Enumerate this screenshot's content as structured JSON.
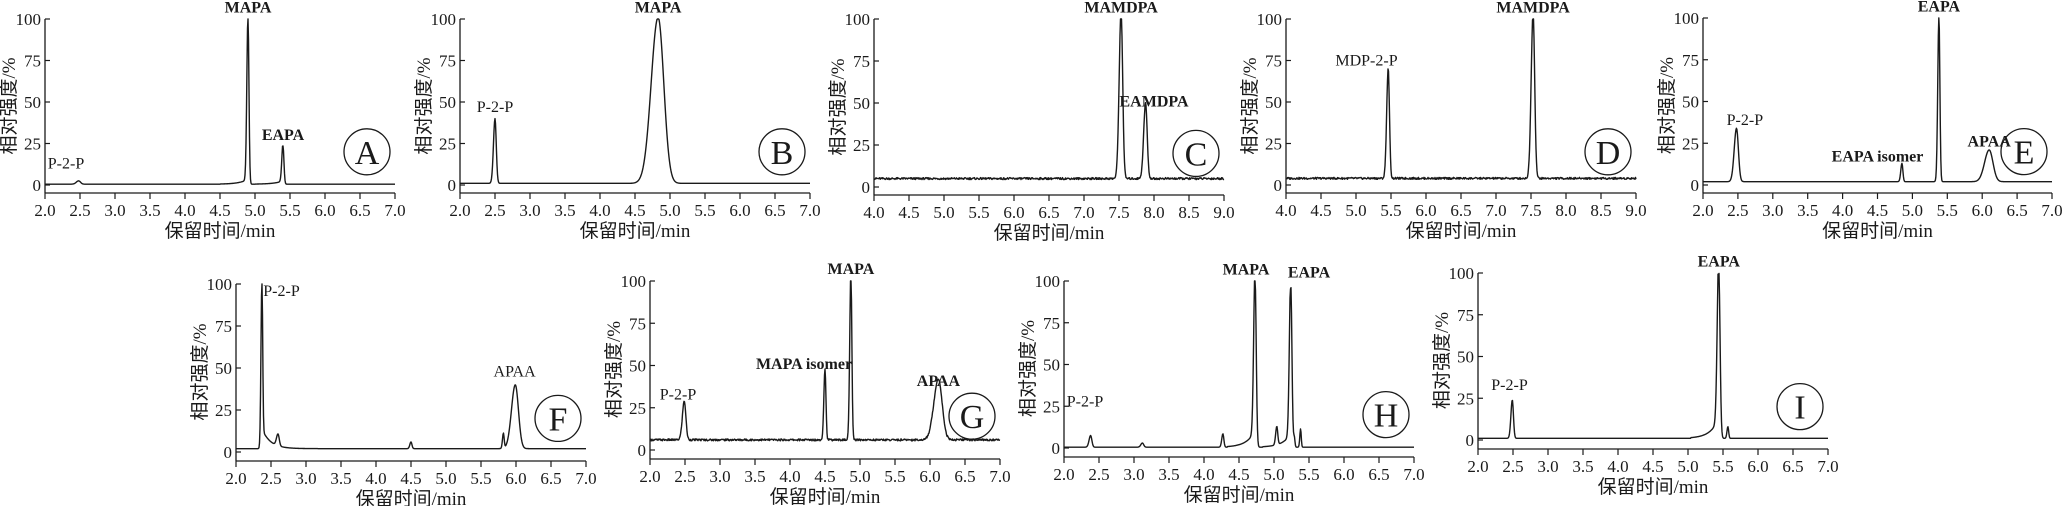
{
  "figure": {
    "ylabel": "相对强度/%",
    "xlabel": "保留时间/min"
  },
  "chart_data": [
    {
      "type": "line",
      "panel": "A",
      "xlabel": "保留时间/min",
      "ylabel": "相对强度/%",
      "xlim": [
        2.0,
        7.0
      ],
      "ylim": [
        0,
        100
      ],
      "xticks": [
        "2.0",
        "2.5",
        "3.0",
        "3.5",
        "4.0",
        "4.5",
        "5.0",
        "5.5",
        "6.0",
        "6.5",
        "7.0"
      ],
      "yticks": [
        "0",
        "25",
        "50",
        "75",
        "100"
      ],
      "baseline": 0.5,
      "peaks": [
        {
          "label": "P-2-P",
          "x": 2.48,
          "height": 2,
          "width": 0.03
        },
        {
          "label": "MAPA",
          "x": 4.9,
          "height": 100,
          "width": 0.015,
          "front_tail": 3
        },
        {
          "label": "EAPA",
          "x": 5.4,
          "height": 23,
          "width": 0.015,
          "front_tail": 2
        }
      ],
      "labels": [
        {
          "text": "P-2-P",
          "x": 2.3,
          "y": 10,
          "bold": false
        },
        {
          "text": "MAPA",
          "x": 4.9,
          "y": 104,
          "bold": true
        },
        {
          "text": "EAPA",
          "x": 5.4,
          "y": 27,
          "bold": true
        }
      ]
    },
    {
      "type": "line",
      "panel": "B",
      "xlabel": "保留时间/min",
      "ylabel": "相对强度/%",
      "xlim": [
        2.0,
        7.0
      ],
      "ylim": [
        0,
        100
      ],
      "xticks": [
        "2.0",
        "2.5",
        "3.0",
        "3.5",
        "4.0",
        "4.5",
        "5.0",
        "5.5",
        "6.0",
        "6.5",
        "7.0"
      ],
      "yticks": [
        "0",
        "25",
        "50",
        "75",
        "100"
      ],
      "baseline": 1,
      "peaks": [
        {
          "label": "P-2-P",
          "x": 2.5,
          "height": 39,
          "width": 0.02
        },
        {
          "label": "MAPA",
          "x": 4.83,
          "height": 100,
          "width": 0.09
        }
      ],
      "labels": [
        {
          "text": "P-2-P",
          "x": 2.5,
          "y": 44,
          "bold": false
        },
        {
          "text": "MAPA",
          "x": 4.83,
          "y": 104,
          "bold": true
        }
      ]
    },
    {
      "type": "line",
      "panel": "C",
      "xlabel": "保留时间/min",
      "ylabel": "相对强度/%",
      "xlim": [
        4.0,
        9.0
      ],
      "ylim": [
        0,
        100
      ],
      "xticks": [
        "4.0",
        "4.5",
        "5.0",
        "5.5",
        "6.0",
        "6.5",
        "7.0",
        "7.5",
        "8.0",
        "8.5",
        "9.0"
      ],
      "yticks": [
        "0",
        "25",
        "50",
        "75",
        "100"
      ],
      "baseline": 5,
      "peaks": [
        {
          "label": "MAMDPA",
          "x": 7.53,
          "height": 100,
          "width": 0.025
        },
        {
          "label": "EAMDPA",
          "x": 7.88,
          "height": 45,
          "width": 0.025
        }
      ],
      "labels": [
        {
          "text": "MAMDPA",
          "x": 7.53,
          "y": 104,
          "bold": true
        },
        {
          "text": "EAMDPA",
          "x": 8.0,
          "y": 48,
          "bold": true
        }
      ]
    },
    {
      "type": "line",
      "panel": "D",
      "xlabel": "保留时间/min",
      "ylabel": "相对强度/%",
      "xlim": [
        4.0,
        9.0
      ],
      "ylim": [
        0,
        100
      ],
      "xticks": [
        "4.0",
        "4.5",
        "5.0",
        "5.5",
        "6.0",
        "6.5",
        "7.0",
        "7.5",
        "8.0",
        "8.5",
        "9.0"
      ],
      "yticks": [
        "0",
        "25",
        "50",
        "75",
        "100"
      ],
      "baseline": 4,
      "peaks": [
        {
          "label": "MDP-2-P",
          "x": 5.46,
          "height": 66,
          "width": 0.02
        },
        {
          "label": "MAMDPA",
          "x": 7.53,
          "height": 100,
          "width": 0.025
        }
      ],
      "labels": [
        {
          "text": "MDP-2-P",
          "x": 5.15,
          "y": 72,
          "bold": false
        },
        {
          "text": "MAMDPA",
          "x": 7.53,
          "y": 104,
          "bold": true
        }
      ]
    },
    {
      "type": "line",
      "panel": "E",
      "xlabel": "保留时间/min",
      "ylabel": "相对强度/%",
      "xlim": [
        2.0,
        7.0
      ],
      "ylim": [
        0,
        100
      ],
      "xticks": [
        "2.0",
        "2.5",
        "3.0",
        "3.5",
        "4.0",
        "4.5",
        "5.0",
        "5.5",
        "6.0",
        "6.5",
        "7.0"
      ],
      "yticks": [
        "0",
        "25",
        "50",
        "75",
        "100"
      ],
      "baseline": 2,
      "peaks": [
        {
          "label": "P-2-P",
          "x": 2.48,
          "height": 32,
          "width": 0.03
        },
        {
          "label": "EAPA isomer",
          "x": 4.85,
          "height": 11,
          "width": 0.015
        },
        {
          "label": "EAPA",
          "x": 5.38,
          "height": 100,
          "width": 0.015
        },
        {
          "label": "APAA",
          "x": 6.1,
          "height": 19,
          "width": 0.06
        }
      ],
      "labels": [
        {
          "text": "P-2-P",
          "x": 2.6,
          "y": 36,
          "bold": false
        },
        {
          "text": "EAPA isomer",
          "x": 4.5,
          "y": 14,
          "bold": true
        },
        {
          "text": "EAPA",
          "x": 5.38,
          "y": 104,
          "bold": true
        },
        {
          "text": "APAA",
          "x": 6.1,
          "y": 23,
          "bold": true
        }
      ]
    },
    {
      "type": "line",
      "panel": "F",
      "xlabel": "保留时间/min",
      "ylabel": "相对强度/%",
      "xlim": [
        2.0,
        7.0
      ],
      "ylim": [
        0,
        100
      ],
      "xticks": [
        "2.0",
        "2.5",
        "3.0",
        "3.5",
        "4.0",
        "4.5",
        "5.0",
        "5.5",
        "6.0",
        "6.5",
        "7.0"
      ],
      "yticks": [
        "0",
        "25",
        "50",
        "75",
        "100"
      ],
      "baseline": 2,
      "peaks": [
        {
          "label": "P-2-P",
          "x": 2.37,
          "height": 100,
          "width": 0.012,
          "tail": 12
        },
        {
          "label": "",
          "x": 2.6,
          "height": 7,
          "width": 0.02
        },
        {
          "label": "",
          "x": 4.5,
          "height": 4,
          "width": 0.015
        },
        {
          "label": "",
          "x": 5.82,
          "height": 9,
          "width": 0.012
        },
        {
          "label": "APAA",
          "x": 5.99,
          "height": 38,
          "width": 0.05
        }
      ],
      "labels": [
        {
          "text": "P-2-P",
          "x": 2.65,
          "y": 93,
          "bold": false
        },
        {
          "text": "APAA",
          "x": 5.98,
          "y": 45,
          "bold": false
        }
      ]
    },
    {
      "type": "line",
      "panel": "G",
      "xlabel": "保留时间/min",
      "ylabel": "相对强度/%",
      "xlim": [
        2.0,
        7.0
      ],
      "ylim": [
        0,
        100
      ],
      "xticks": [
        "2.0",
        "2.5",
        "3.0",
        "3.5",
        "4.0",
        "4.5",
        "5.0",
        "5.5",
        "6.0",
        "6.5",
        "7.0"
      ],
      "yticks": [
        "0",
        "25",
        "50",
        "75",
        "100"
      ],
      "baseline": 6,
      "peaks": [
        {
          "label": "P-2-P",
          "x": 2.49,
          "height": 23,
          "width": 0.025
        },
        {
          "label": "MAPA isomer",
          "x": 4.5,
          "height": 42,
          "width": 0.015
        },
        {
          "label": "MAPA",
          "x": 4.87,
          "height": 100,
          "width": 0.015
        },
        {
          "label": "APAA",
          "x": 6.12,
          "height": 36,
          "width": 0.06
        }
      ],
      "labels": [
        {
          "text": "P-2-P",
          "x": 2.4,
          "y": 30,
          "bold": false
        },
        {
          "text": "MAPA isomer",
          "x": 4.2,
          "y": 48,
          "bold": true
        },
        {
          "text": "MAPA",
          "x": 4.87,
          "y": 104,
          "bold": true
        },
        {
          "text": "APAA",
          "x": 6.12,
          "y": 38,
          "bold": true
        }
      ]
    },
    {
      "type": "line",
      "panel": "H",
      "xlabel": "保留时间/min",
      "ylabel": "相对强度/%",
      "xlim": [
        2.0,
        7.0
      ],
      "ylim": [
        0,
        100
      ],
      "xticks": [
        "2.0",
        "2.5",
        "3.0",
        "3.5",
        "4.0",
        "4.5",
        "5.0",
        "5.5",
        "6.0",
        "6.5",
        "7.0"
      ],
      "yticks": [
        "0",
        "25",
        "50",
        "75",
        "100"
      ],
      "baseline": 0.5,
      "peaks": [
        {
          "label": "P-2-P",
          "x": 2.38,
          "height": 7,
          "width": 0.02
        },
        {
          "label": "",
          "x": 3.12,
          "height": 2.5,
          "width": 0.02
        },
        {
          "label": "",
          "x": 4.27,
          "height": 8,
          "width": 0.015
        },
        {
          "label": "MAPA",
          "x": 4.73,
          "height": 100,
          "width": 0.018,
          "front_tail": 10
        },
        {
          "label": "",
          "x": 5.04,
          "height": 11,
          "width": 0.015
        },
        {
          "label": "EAPA",
          "x": 5.24,
          "height": 97,
          "width": 0.018,
          "front_tail": 8
        },
        {
          "label": "",
          "x": 5.29,
          "height": 6,
          "width": 0.01
        },
        {
          "label": "",
          "x": 5.38,
          "height": 11,
          "width": 0.01
        }
      ],
      "labels": [
        {
          "text": "P-2-P",
          "x": 2.3,
          "y": 25,
          "bold": false
        },
        {
          "text": "MAPA",
          "x": 4.6,
          "y": 104,
          "bold": true
        },
        {
          "text": "EAPA",
          "x": 5.5,
          "y": 102,
          "bold": true
        }
      ]
    },
    {
      "type": "line",
      "panel": "I",
      "xlabel": "保留时间/min",
      "ylabel": "相对强度/%",
      "xlim": [
        2.0,
        7.0
      ],
      "ylim": [
        0,
        100
      ],
      "xticks": [
        "2.0",
        "2.5",
        "3.0",
        "3.5",
        "4.0",
        "4.5",
        "5.0",
        "5.5",
        "6.0",
        "6.5",
        "7.0"
      ],
      "yticks": [
        "0",
        "25",
        "50",
        "75",
        "100"
      ],
      "baseline": 1,
      "peaks": [
        {
          "label": "P-2-P",
          "x": 2.49,
          "height": 23,
          "width": 0.018
        },
        {
          "label": "EAPA",
          "x": 5.44,
          "height": 100,
          "width": 0.02,
          "front_tail": 12
        },
        {
          "label": "",
          "x": 5.57,
          "height": 7,
          "width": 0.012
        }
      ],
      "labels": [
        {
          "text": "P-2-P",
          "x": 2.45,
          "y": 30,
          "bold": false
        },
        {
          "text": "EAPA",
          "x": 5.44,
          "y": 104,
          "bold": true
        }
      ]
    }
  ]
}
